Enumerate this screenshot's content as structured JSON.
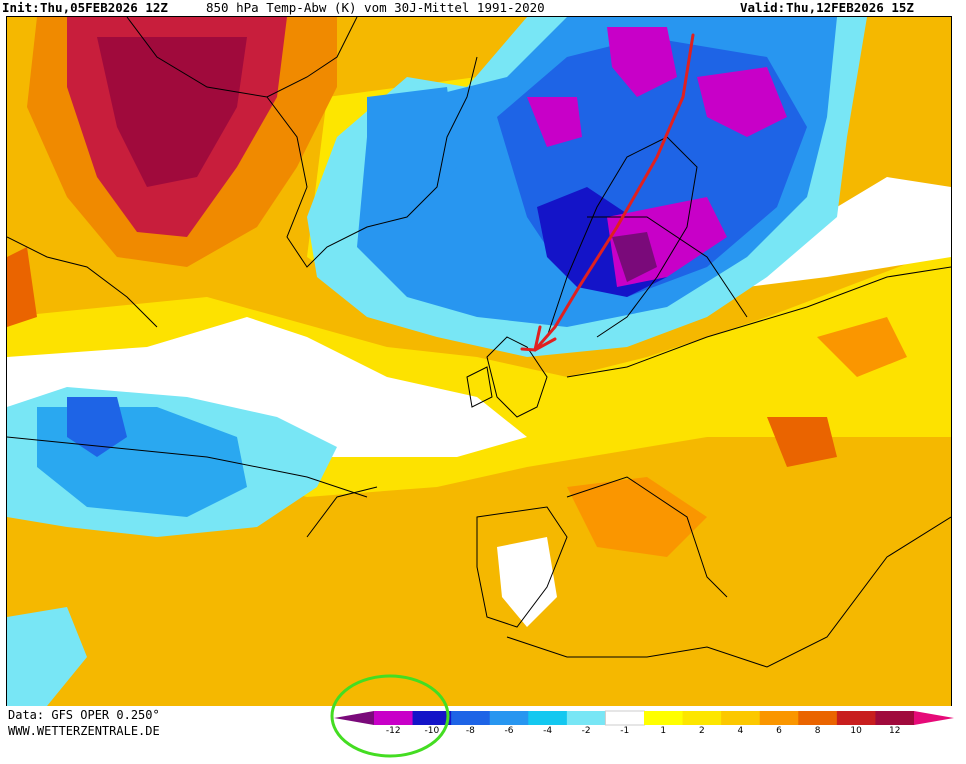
{
  "header": {
    "init_label": "Init:",
    "init_value": "Thu,05FEB2026 12Z",
    "title": "850 hPa Temp-Abw (K) vom 30J-Mittel 1991-2020",
    "valid_label": "Valid:",
    "valid_value": "Thu,12FEB2026 15Z"
  },
  "footer": {
    "data_source": "Data: GFS OPER 0.250°",
    "website": "WWW.WETTERZENTRALE.DE"
  },
  "colorbar": {
    "labels": [
      "-12",
      "-10",
      "-8",
      "-6",
      "-4",
      "-2",
      "-1",
      "1",
      "2",
      "4",
      "6",
      "8",
      "10",
      "12"
    ],
    "colors": [
      "#7a0a7a",
      "#c800c8",
      "#1414c8",
      "#1e64e6",
      "#2896f0",
      "#14c8f0",
      "#78e6f5",
      "#ffffff",
      "#ffff00",
      "#fde600",
      "#fcc800",
      "#fa9600",
      "#ea6400",
      "#c81e1e",
      "#a00a3c",
      "#e60a78"
    ]
  },
  "colors": {
    "arrow": "#e02020",
    "circle": "#44dd22",
    "coastline": "#000000"
  }
}
